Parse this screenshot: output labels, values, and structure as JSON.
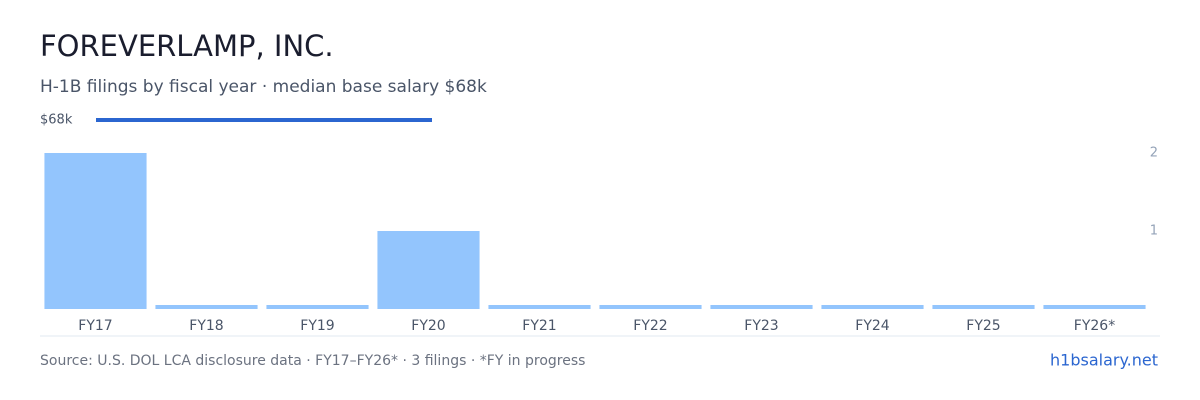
{
  "chart_data": {
    "type": "bar",
    "title": "FOREVERLAMP, INC.",
    "subtitle": "H-1B filings by fiscal year · median base salary $68k",
    "salary_label": "$68k",
    "categories": [
      "FY17",
      "FY18",
      "FY19",
      "FY20",
      "FY21",
      "FY22",
      "FY23",
      "FY24",
      "FY25",
      "FY26*"
    ],
    "values": [
      2,
      0,
      0,
      1,
      0,
      0,
      0,
      0,
      0,
      0
    ],
    "color": "#93c5fd",
    "ylim": [
      0,
      2
    ],
    "yticks": [
      1,
      2
    ],
    "source": "Source: U.S. DOL LCA disclosure data · FY17–FY26* · 3 filings · *FY in progress",
    "link": "h1bsalary.net"
  }
}
